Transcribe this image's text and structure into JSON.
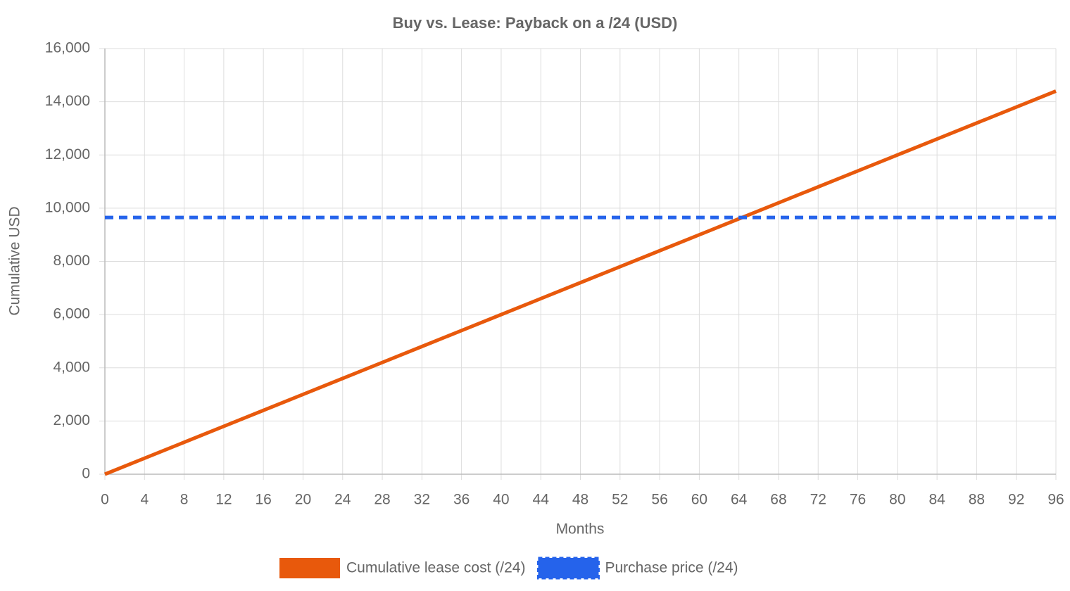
{
  "chart_data": {
    "type": "line",
    "title": "Buy vs. Lease: Payback on a /24 (USD)",
    "x_label": "Months",
    "y_label": "Cumulative USD",
    "x": [
      0,
      4,
      8,
      12,
      16,
      20,
      24,
      28,
      32,
      36,
      40,
      44,
      48,
      52,
      56,
      60,
      64,
      68,
      72,
      76,
      80,
      84,
      88,
      92,
      96
    ],
    "series": [
      {
        "name": "Cumulative lease cost (/24)",
        "color": "#e8590c",
        "dashed": false,
        "values": [
          0,
          600,
          1200,
          1800,
          2400,
          3000,
          3600,
          4200,
          4800,
          5400,
          6000,
          6600,
          7200,
          7800,
          8400,
          9000,
          9600,
          10200,
          10800,
          11400,
          12000,
          12600,
          13200,
          13800,
          14400
        ]
      },
      {
        "name": "Purchase price (/24)",
        "color": "#2563eb",
        "dashed": true,
        "values": [
          9650,
          9650,
          9650,
          9650,
          9650,
          9650,
          9650,
          9650,
          9650,
          9650,
          9650,
          9650,
          9650,
          9650,
          9650,
          9650,
          9650,
          9650,
          9650,
          9650,
          9650,
          9650,
          9650,
          9650,
          9650
        ]
      }
    ],
    "xlim": [
      0,
      96
    ],
    "xticks": [
      0,
      4,
      8,
      12,
      16,
      20,
      24,
      28,
      32,
      36,
      40,
      44,
      48,
      52,
      56,
      60,
      64,
      68,
      72,
      76,
      80,
      84,
      88,
      92,
      96
    ],
    "ylim": [
      0,
      16000
    ],
    "yticks": [
      0,
      {
        "value": 2000,
        "label": "2,000"
      },
      {
        "value": 4000,
        "label": "4,000"
      },
      {
        "value": 6000,
        "label": "6,000"
      },
      {
        "value": 8000,
        "label": "8,000"
      },
      {
        "value": 10000,
        "label": "10,000"
      },
      {
        "value": 12000,
        "label": "12,000"
      },
      {
        "value": 14000,
        "label": "14,000"
      },
      {
        "value": 16000,
        "label": "16,000"
      }
    ],
    "grid": true,
    "legend": "bottom"
  }
}
